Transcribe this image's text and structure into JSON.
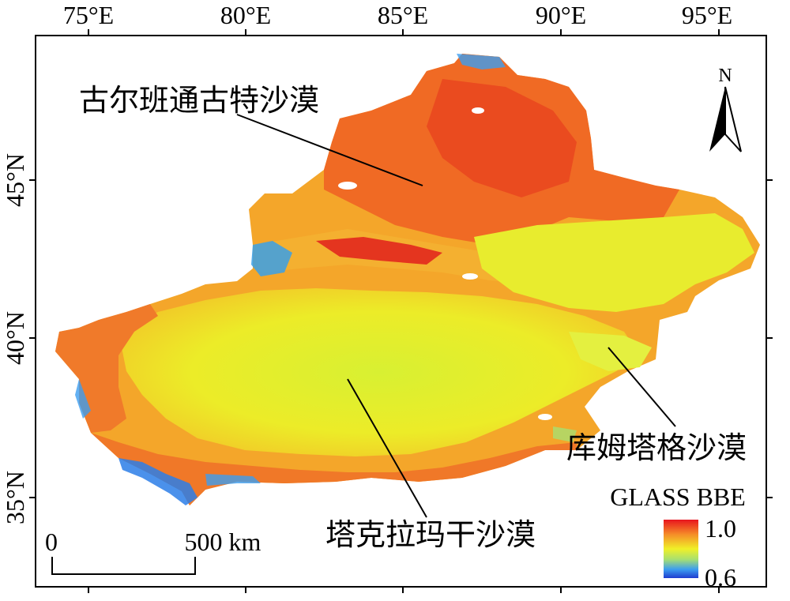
{
  "map": {
    "top_longitude_labels": [
      "75°E",
      "80°E",
      "85°E",
      "90°E",
      "95°E"
    ],
    "left_latitude_labels": [
      "45°N",
      "40°N",
      "35°N"
    ],
    "north_arrow_label": "N",
    "region_labels": {
      "gurbantunggut": "古尔班通古特沙漠",
      "kumtag": "库姆塔格沙漠",
      "taklimakan": "塔克拉玛干沙漠"
    },
    "scale_bar": {
      "start_label": "0",
      "end_label": "500 km"
    },
    "legend": {
      "title": "GLASS BBE",
      "max_label": "1.0",
      "min_label": "0.6",
      "colors": [
        "#e8141e",
        "#f58c28",
        "#f0f028",
        "#a8e070",
        "#3c9ef0",
        "#1e3cd0"
      ]
    }
  }
}
